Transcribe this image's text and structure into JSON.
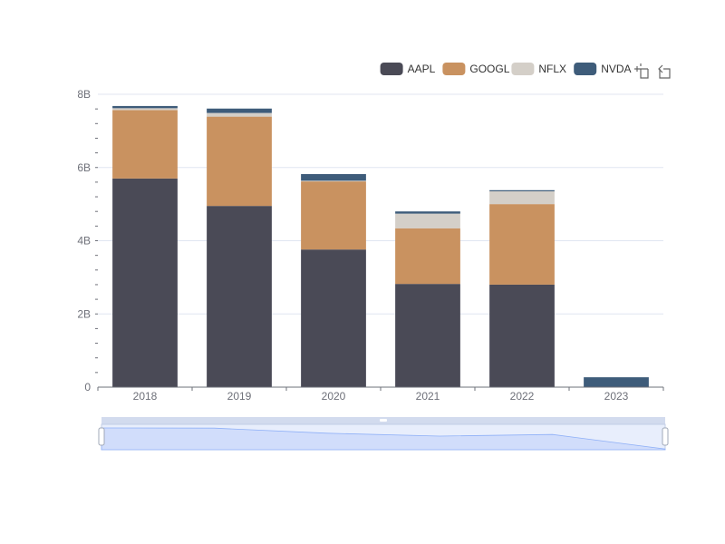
{
  "chart_data": {
    "type": "bar",
    "stacked": true,
    "categories": [
      "2018",
      "2019",
      "2020",
      "2021",
      "2022",
      "2023"
    ],
    "series": [
      {
        "name": "AAPL",
        "color": "#4a4a56",
        "values": [
          5.7,
          4.95,
          3.76,
          2.82,
          2.8,
          0
        ]
      },
      {
        "name": "GOOGL",
        "color": "#c99260",
        "values": [
          1.87,
          2.44,
          1.86,
          1.52,
          2.2,
          0
        ]
      },
      {
        "name": "NFLX",
        "color": "#d4cfc8",
        "values": [
          0.05,
          0.1,
          0.02,
          0.4,
          0.35,
          0
        ]
      },
      {
        "name": "NVDA",
        "color": "#3e5c7a",
        "values": [
          0.06,
          0.12,
          0.18,
          0.06,
          0.03,
          0.27
        ]
      }
    ],
    "y_ticks": [
      "0",
      "2B",
      "4B",
      "6B",
      "8B"
    ],
    "ylim": [
      0,
      8
    ],
    "title": "",
    "xlabel": "",
    "ylabel": "",
    "legend_position": "top-right",
    "grid": true
  },
  "toolbox": {
    "zoom_icon": "zoom-icon",
    "restore_icon": "restore-icon"
  },
  "data_zoom": {
    "range_percent": [
      0,
      100
    ]
  }
}
